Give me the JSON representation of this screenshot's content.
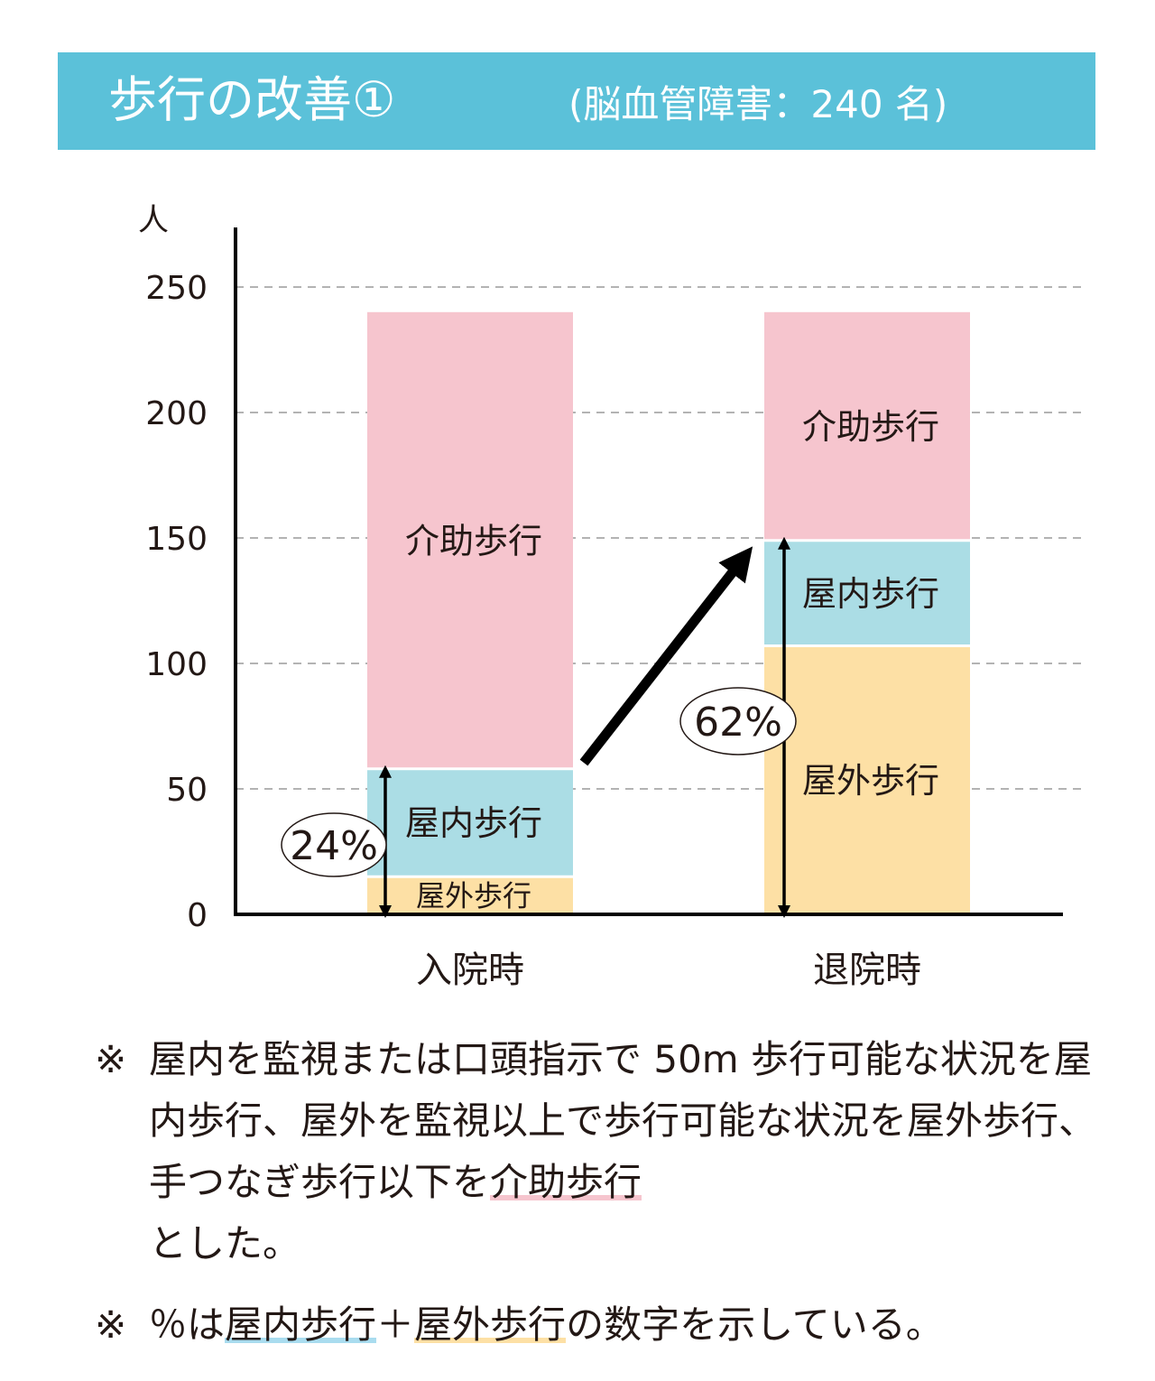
{
  "header": {
    "title": "歩行の改善①",
    "subtitle": "(脳血管障害：240 名)"
  },
  "chart_data": {
    "type": "bar",
    "stacked": true,
    "ylabel": "人",
    "ylim": [
      0,
      250
    ],
    "yticks": [
      0,
      50,
      100,
      150,
      200,
      250
    ],
    "grid": "dashed horizontal",
    "categories": [
      "入院時",
      "退院時"
    ],
    "series": [
      {
        "name": "屋外歩行",
        "values": [
          15,
          107
        ],
        "color": "#fde0a5"
      },
      {
        "name": "屋内歩行",
        "values": [
          43,
          42
        ],
        "color": "#abdde5"
      },
      {
        "name": "介助歩行",
        "values": [
          182,
          91
        ],
        "color": "#f6c5ce"
      }
    ],
    "annotations": [
      {
        "text": "24%",
        "category": "入院時",
        "range": [
          0,
          58
        ]
      },
      {
        "text": "62%",
        "category": "退院時",
        "range": [
          0,
          149
        ]
      }
    ],
    "trend_arrow": {
      "from": "入院時",
      "to": "退院時"
    }
  },
  "notes": {
    "mark": "※",
    "note1": {
      "before": "屋内を監視または口頭指示で 50m 歩行可能な状況を屋内歩行、屋外を監視以上で歩行可能な状況を屋外歩行、手つなぎ歩行以下を",
      "highlight": "介助歩行",
      "after": "とした。"
    },
    "note2": {
      "before": "％は",
      "indoor": "屋内歩行",
      "plus": "＋",
      "outdoor": "屋外歩行",
      "after": "の数字を示している。"
    }
  },
  "colors": {
    "banner": "#5bc1d9",
    "assisted": "#f6c5ce",
    "indoor": "#abdde5",
    "outdoor": "#fde0a5",
    "text": "#231815"
  }
}
